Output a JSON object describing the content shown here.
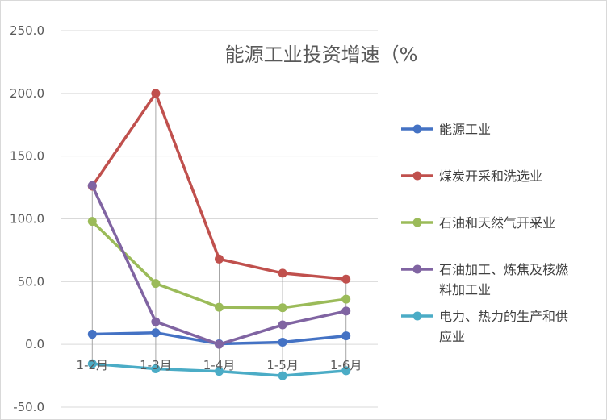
{
  "chart_data": {
    "type": "line",
    "title": "能源工业投资增速（%",
    "xlabel": "",
    "ylabel": "",
    "categories": [
      "1-2月",
      "1-3月",
      "1-4月",
      "1-5月",
      "1-6月"
    ],
    "ylim": [
      -50,
      250
    ],
    "yticks": [
      "250.0",
      "200.0",
      "150.0",
      "100.0",
      "50.0",
      "0.0",
      "-50.0"
    ],
    "ytick_values": [
      250,
      200,
      150,
      100,
      50,
      0,
      -50
    ],
    "grid": "horizontal",
    "legend": "right",
    "series": [
      {
        "name": "能源工业",
        "name_lines": [
          "能源工业"
        ],
        "color": "#4472c4",
        "values": [
          8.1,
          9.3,
          0.4,
          1.7,
          6.8
        ]
      },
      {
        "name": "煤炭开采和洗选业",
        "name_lines": [
          "煤炭开采和洗选业"
        ],
        "color": "#c0504d",
        "values": [
          126.0,
          200.0,
          68.0,
          56.7,
          52.0
        ]
      },
      {
        "name": "石油和天然气开采业",
        "name_lines": [
          "石油和天然气开采业"
        ],
        "color": "#9bbb59",
        "values": [
          98.0,
          48.5,
          29.6,
          29.2,
          36.0
        ]
      },
      {
        "name": "石油加工、炼焦及核燃料加工业",
        "name_lines": [
          "石油加工、炼焦及核燃",
          "料加工业"
        ],
        "color": "#8064a2",
        "values": [
          126.5,
          18.0,
          0.0,
          15.5,
          26.5
        ]
      },
      {
        "name": "电力、热力的生产和供应业",
        "name_lines": [
          "电力、热力的生产和供",
          "应业"
        ],
        "color": "#4bacc6",
        "values": [
          -15.5,
          -19.5,
          -21.5,
          -25.0,
          -21.0
        ]
      }
    ]
  }
}
